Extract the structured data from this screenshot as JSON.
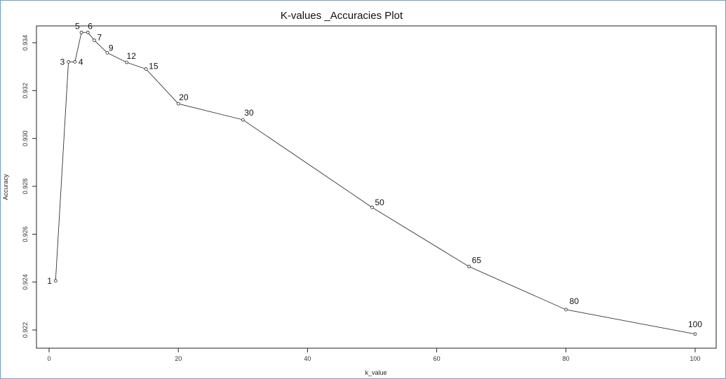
{
  "chart_data": {
    "type": "line",
    "title": "K-values _Accuracies Plot",
    "xlabel": "k_value",
    "ylabel": "Accuracy",
    "xlim": [
      0,
      100
    ],
    "ylim": [
      0.922,
      0.934
    ],
    "xticks": [
      "0",
      "20",
      "40",
      "60",
      "80",
      "100"
    ],
    "yticks": [
      "0.922",
      "0.924",
      "0.926",
      "0.928",
      "0.930",
      "0.932",
      "0.934"
    ],
    "grid": false,
    "points": [
      {
        "k": 1,
        "acc": 0.92405,
        "label": "1"
      },
      {
        "k": 3,
        "acc": 0.9332,
        "label": "3"
      },
      {
        "k": 4,
        "acc": 0.9332,
        "label": "4"
      },
      {
        "k": 5,
        "acc": 0.93443,
        "label": "5"
      },
      {
        "k": 6,
        "acc": 0.93443,
        "label": "6"
      },
      {
        "k": 7,
        "acc": 0.9341,
        "label": "7"
      },
      {
        "k": 9,
        "acc": 0.93358,
        "label": "9"
      },
      {
        "k": 12,
        "acc": 0.93318,
        "label": "12"
      },
      {
        "k": 15,
        "acc": 0.9329,
        "label": "15"
      },
      {
        "k": 20,
        "acc": 0.93145,
        "label": "20"
      },
      {
        "k": 30,
        "acc": 0.93078,
        "label": "30"
      },
      {
        "k": 50,
        "acc": 0.92712,
        "label": "50"
      },
      {
        "k": 65,
        "acc": 0.92465,
        "label": "65"
      },
      {
        "k": 80,
        "acc": 0.92285,
        "label": "80"
      },
      {
        "k": 100,
        "acc": 0.92183,
        "label": "100"
      }
    ]
  }
}
